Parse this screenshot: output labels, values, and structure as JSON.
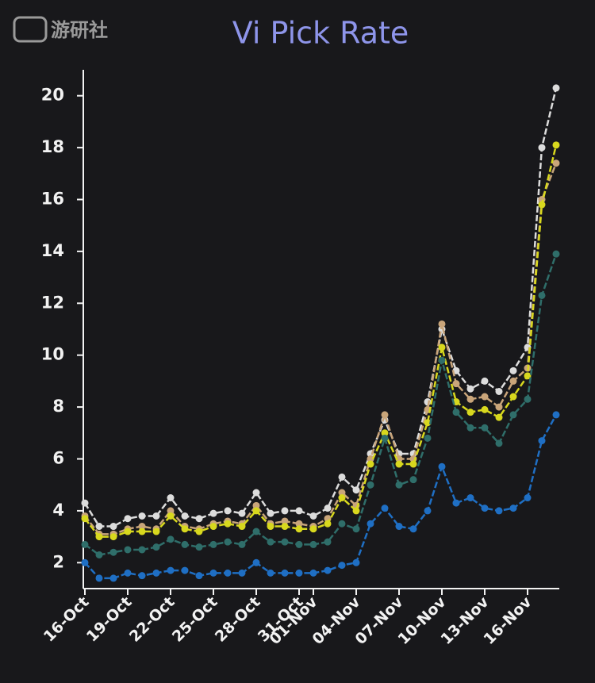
{
  "watermark": "游研社",
  "chart_data": {
    "type": "line",
    "title": "Vi Pick Rate",
    "categories": [
      "16-Oct",
      null,
      null,
      "19-Oct",
      null,
      null,
      "22-Oct",
      null,
      null,
      "25-Oct",
      null,
      null,
      "28-Oct",
      null,
      null,
      "31-Oct",
      "01-Nov",
      null,
      null,
      "04-Nov",
      null,
      null,
      "07-Nov",
      null,
      null,
      "10-Nov",
      null,
      null,
      "13-Nov",
      null,
      null,
      "16-Nov",
      null,
      null
    ],
    "series": [
      {
        "color": "#dcdcdc",
        "values": [
          4.3,
          3.4,
          3.4,
          3.7,
          3.8,
          3.8,
          4.5,
          3.8,
          3.7,
          3.9,
          4.0,
          3.9,
          4.7,
          3.9,
          4.0,
          4.0,
          3.8,
          4.1,
          5.3,
          4.8,
          6.2,
          7.5,
          6.2,
          6.2,
          8.2,
          11.0,
          9.4,
          8.7,
          9.0,
          8.6,
          9.4,
          10.3,
          18.0,
          20.3
        ]
      },
      {
        "color": "#c9a57a",
        "values": [
          3.8,
          3.1,
          3.1,
          3.3,
          3.4,
          3.3,
          4.0,
          3.4,
          3.3,
          3.5,
          3.6,
          3.5,
          4.2,
          3.5,
          3.6,
          3.5,
          3.4,
          3.7,
          4.7,
          4.2,
          6.0,
          7.7,
          6.0,
          6.0,
          7.9,
          11.2,
          8.9,
          8.3,
          8.4,
          8.0,
          9.0,
          9.5,
          16.0,
          17.4
        ]
      },
      {
        "color": "#d8d81e",
        "values": [
          3.7,
          3.0,
          3.0,
          3.2,
          3.2,
          3.2,
          3.8,
          3.3,
          3.2,
          3.4,
          3.5,
          3.4,
          4.0,
          3.4,
          3.4,
          3.3,
          3.3,
          3.5,
          4.5,
          4.0,
          5.8,
          7.0,
          5.8,
          5.8,
          7.4,
          10.3,
          8.2,
          7.8,
          7.9,
          7.6,
          8.4,
          9.2,
          15.8,
          18.1
        ]
      },
      {
        "color": "#2f6e6a",
        "values": [
          2.7,
          2.3,
          2.4,
          2.5,
          2.5,
          2.6,
          2.9,
          2.7,
          2.6,
          2.7,
          2.8,
          2.7,
          3.2,
          2.8,
          2.8,
          2.7,
          2.7,
          2.8,
          3.5,
          3.3,
          5.0,
          6.8,
          5.0,
          5.2,
          6.8,
          9.8,
          7.8,
          7.2,
          7.2,
          6.6,
          7.7,
          8.3,
          12.3,
          13.9
        ]
      },
      {
        "color": "#1f6fc4",
        "values": [
          2.0,
          1.4,
          1.4,
          1.6,
          1.5,
          1.6,
          1.7,
          1.7,
          1.5,
          1.6,
          1.6,
          1.6,
          2.0,
          1.6,
          1.6,
          1.6,
          1.6,
          1.7,
          1.9,
          2.0,
          3.5,
          4.1,
          3.4,
          3.3,
          4.0,
          5.7,
          4.3,
          4.5,
          4.1,
          4.0,
          4.1,
          4.5,
          6.7,
          7.7
        ]
      }
    ],
    "ylim": [
      1,
      21
    ],
    "yticks": [
      2,
      4,
      6,
      8,
      10,
      12,
      14,
      16,
      18,
      20
    ]
  }
}
